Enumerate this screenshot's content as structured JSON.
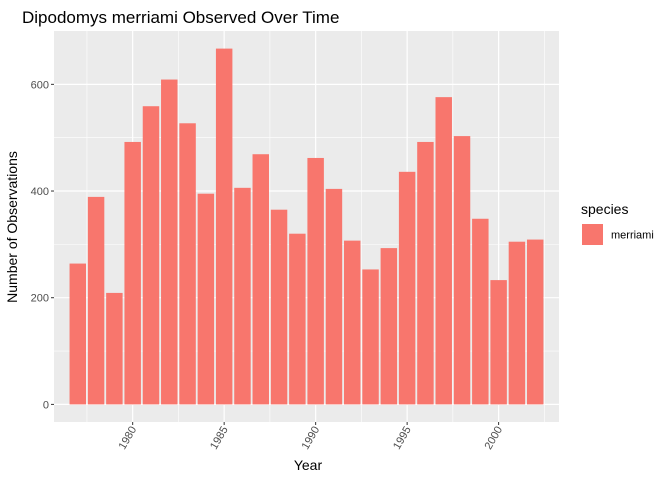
{
  "chart_data": {
    "type": "bar",
    "title": "Dipodomys merriami Observed Over Time",
    "xlabel": "Year",
    "ylabel": "Number of Observations",
    "x": [
      1977,
      1978,
      1979,
      1980,
      1981,
      1982,
      1983,
      1984,
      1985,
      1986,
      1987,
      1988,
      1989,
      1990,
      1991,
      1992,
      1993,
      1994,
      1995,
      1996,
      1997,
      1998,
      1999,
      2000,
      2001,
      2002
    ],
    "values": [
      264,
      389,
      209,
      492,
      559,
      609,
      527,
      395,
      667,
      406,
      469,
      365,
      320,
      462,
      404,
      307,
      253,
      293,
      436,
      492,
      576,
      503,
      348,
      233,
      305,
      309
    ],
    "xlim": [
      1975.7,
      2003.3
    ],
    "ylim": [
      -33,
      700
    ],
    "x_ticks": [
      1980,
      1985,
      1990,
      1995,
      2000
    ],
    "x_tick_labels": [
      "1980",
      "1985",
      "1990",
      "1995",
      "2000"
    ],
    "y_ticks": [
      0,
      200,
      400,
      600
    ],
    "y_tick_labels": [
      "0",
      "200",
      "400",
      "600"
    ],
    "grid": true,
    "legend": {
      "title": "species",
      "position": "right",
      "entries": [
        {
          "label": "merriami",
          "color": "#F8766D"
        }
      ]
    },
    "bar_color": "#F8766D",
    "panel_color": "#EBEBEB"
  }
}
